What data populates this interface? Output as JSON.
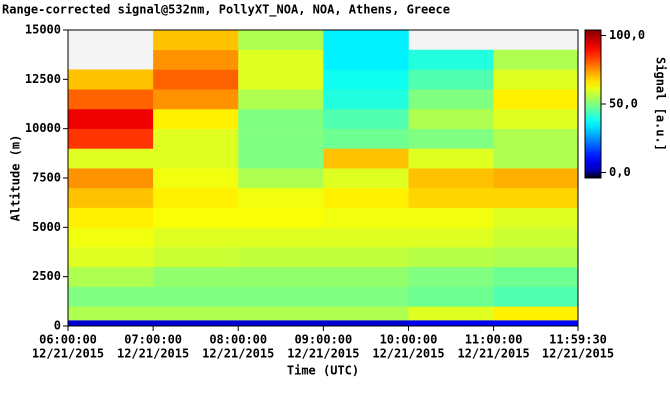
{
  "chart_data": {
    "type": "heatmap",
    "title": "Range-corrected signal@532nm, PollyXT_NOA, NOA, Athens, Greece",
    "x_label": "Time (UTC)",
    "y_label": "Altitude (m)",
    "colorbar_label": "Signal [a.u.]",
    "xlim": [
      "2015-12-21T06:00:00",
      "2015-12-21T11:59:30"
    ],
    "xticks": [
      {
        "value": "2015-12-21T06:00:00",
        "label": "06:00:00",
        "date": "12/21/2015"
      },
      {
        "value": "2015-12-21T07:00:00",
        "label": "07:00:00",
        "date": "12/21/2015"
      },
      {
        "value": "2015-12-21T08:00:00",
        "label": "08:00:00",
        "date": "12/21/2015"
      },
      {
        "value": "2015-12-21T09:00:00",
        "label": "09:00:00",
        "date": "12/21/2015"
      },
      {
        "value": "2015-12-21T10:00:00",
        "label": "10:00:00",
        "date": "12/21/2015"
      },
      {
        "value": "2015-12-21T11:00:00",
        "label": "11:00:00",
        "date": "12/21/2015"
      },
      {
        "value": "2015-12-21T11:59:30",
        "label": "11:59:30",
        "date": "12/21/2015"
      }
    ],
    "ylim": [
      0,
      15000
    ],
    "yticks": [
      0,
      2500,
      5000,
      7500,
      10000,
      12500,
      15000
    ],
    "clim": [
      -4,
      104
    ],
    "cticks": [
      {
        "value": 0,
        "label": "0,0"
      },
      {
        "value": 50,
        "label": "50,0"
      },
      {
        "value": 100,
        "label": "100,0"
      }
    ],
    "x_bins": [
      "2015-12-21T06:00:00",
      "2015-12-21T07:00:00",
      "2015-12-21T08:00:00",
      "2015-12-21T09:00:00",
      "2015-12-21T10:00:00",
      "2015-12-21T11:00:00",
      "2015-12-21T11:59:30"
    ],
    "y_bins": [
      0,
      300,
      1000,
      2000,
      3000,
      4000,
      5000,
      6000,
      7000,
      8000,
      9000,
      10000,
      11000,
      12000,
      13000,
      14000,
      15000
    ],
    "values": [
      [
        5,
        5,
        5,
        5,
        8,
        10
      ],
      [
        55,
        55,
        55,
        55,
        60,
        65
      ],
      [
        50,
        50,
        50,
        50,
        48,
        45
      ],
      [
        55,
        52,
        52,
        52,
        50,
        48
      ],
      [
        60,
        58,
        57,
        57,
        56,
        55
      ],
      [
        62,
        60,
        60,
        60,
        60,
        58
      ],
      [
        65,
        63,
        63,
        62,
        62,
        60
      ],
      [
        70,
        65,
        62,
        65,
        68,
        68
      ],
      [
        75,
        62,
        55,
        60,
        70,
        72
      ],
      [
        60,
        60,
        50,
        70,
        60,
        55
      ],
      [
        85,
        60,
        50,
        48,
        50,
        55
      ],
      [
        92,
        65,
        50,
        45,
        55,
        60
      ],
      [
        80,
        75,
        55,
        40,
        50,
        65
      ],
      [
        70,
        80,
        60,
        38,
        45,
        60
      ],
      [
        null,
        75,
        60,
        35,
        40,
        55
      ],
      [
        null,
        70,
        55,
        35,
        null,
        null
      ]
    ]
  }
}
